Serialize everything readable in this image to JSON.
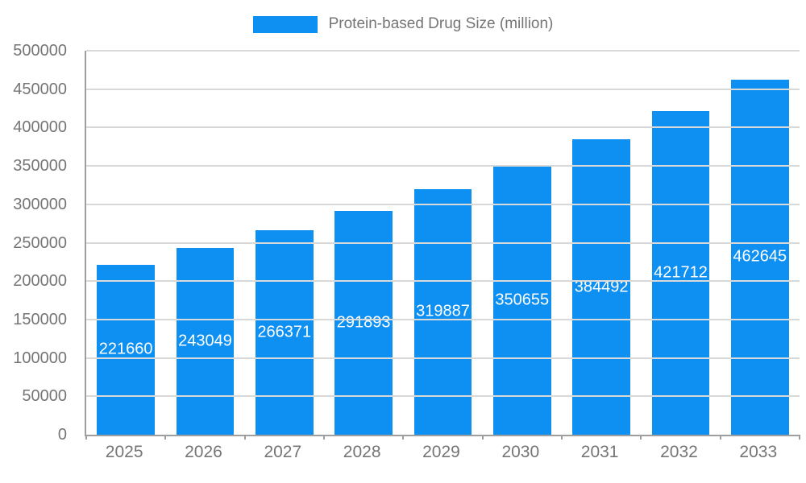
{
  "legend": {
    "label": "Protein-based Drug Size (million)"
  },
  "chart_data": {
    "type": "bar",
    "title": "Protein-based Drug Size (million)",
    "categories": [
      "2025",
      "2026",
      "2027",
      "2028",
      "2029",
      "2030",
      "2031",
      "2032",
      "2033"
    ],
    "values": [
      221660,
      243049,
      266371,
      291893,
      319887,
      350655,
      384492,
      421712,
      462645
    ],
    "xlabel": "",
    "ylabel": "",
    "ylim": [
      0,
      500000
    ],
    "ytick_step": 50000,
    "grid": true,
    "legend_position": "top",
    "bar_color": "#0e8ff2",
    "value_label_color": "#ffffff",
    "axis_text_color": "#757575"
  }
}
